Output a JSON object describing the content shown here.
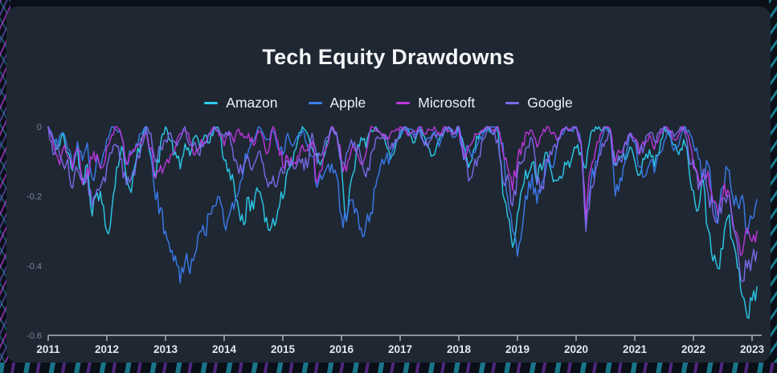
{
  "theme": {
    "page_bg": "#0a0f18",
    "card_bg": "#1f2733",
    "title_color": "#f4f6f8",
    "legend_text_color": "#eef1f4",
    "axis_line_color": "#ccd2da",
    "x_label_color": "#e4e8ec",
    "y_label_color": "#79839a",
    "edge_teal": "#25c7e3",
    "edge_magenta": "#c13be0"
  },
  "chart_data": {
    "type": "line",
    "title": "Tech Equity Drawdowns",
    "xlabel": "",
    "ylabel": "",
    "x_start_year": 2011,
    "x_step_months": 1,
    "xticks": [
      2011,
      2012,
      2013,
      2014,
      2015,
      2016,
      2017,
      2018,
      2019,
      2020,
      2021,
      2022,
      2023
    ],
    "yticks": [
      "0",
      "-0.2",
      "-0.4",
      "-0.6"
    ],
    "ylim": [
      -0.6,
      0
    ],
    "grid": false,
    "legend_position": "top",
    "render": {
      "upsample": 3,
      "jitter_base": 0.008,
      "jitter_scale": 0.18,
      "jitter_cap": 0.03,
      "seed": 42
    },
    "series": [
      {
        "name": "Amazon",
        "color": "#2ccfee",
        "values": [
          0,
          -0.04,
          -0.06,
          -0.02,
          -0.08,
          -0.12,
          -0.06,
          -0.16,
          -0.1,
          -0.25,
          -0.18,
          -0.22,
          -0.3,
          -0.24,
          -0.12,
          -0.06,
          -0.14,
          -0.18,
          -0.1,
          -0.04,
          0,
          -0.08,
          -0.15,
          -0.05,
          0,
          -0.04,
          -0.08,
          -0.12,
          -0.05,
          -0.08,
          -0.03,
          -0.06,
          -0.02,
          -0.05,
          0,
          -0.01,
          -0.1,
          -0.12,
          -0.16,
          -0.25,
          -0.28,
          -0.2,
          -0.24,
          -0.18,
          -0.22,
          -0.3,
          -0.26,
          -0.25,
          -0.2,
          -0.12,
          -0.1,
          -0.04,
          0,
          -0.02,
          -0.06,
          -0.08,
          -0.1,
          -0.04,
          0,
          -0.02,
          -0.12,
          -0.28,
          -0.16,
          -0.08,
          -0.03,
          -0.06,
          -0.01,
          0,
          -0.02,
          -0.05,
          -0.1,
          -0.06,
          -0.03,
          0,
          -0.02,
          -0.04,
          -0.01,
          -0.03,
          -0.06,
          -0.08,
          -0.04,
          -0.01,
          0,
          -0.02,
          0,
          -0.05,
          -0.12,
          -0.06,
          -0.03,
          -0.01,
          0,
          -0.02,
          0,
          -0.2,
          -0.26,
          -0.34,
          -0.24,
          -0.18,
          -0.14,
          -0.1,
          -0.16,
          -0.12,
          -0.08,
          -0.14,
          -0.16,
          -0.15,
          -0.12,
          -0.1,
          -0.06,
          -0.08,
          -0.12,
          -0.02,
          0,
          -0.01,
          0,
          -0.02,
          -0.12,
          -0.08,
          -0.1,
          -0.06,
          -0.09,
          -0.13,
          -0.1,
          -0.06,
          -0.11,
          -0.08,
          0,
          -0.02,
          -0.05,
          -0.08,
          -0.04,
          -0.1,
          -0.18,
          -0.25,
          -0.15,
          -0.3,
          -0.38,
          -0.4,
          -0.35,
          -0.26,
          -0.32,
          -0.4,
          -0.48,
          -0.55,
          -0.5,
          -0.46
        ]
      },
      {
        "name": "Apple",
        "color": "#3b7ef0",
        "values": [
          0,
          -0.03,
          -0.05,
          -0.02,
          -0.06,
          -0.12,
          -0.04,
          -0.1,
          -0.05,
          -0.15,
          -0.08,
          -0.1,
          -0.04,
          0,
          -0.01,
          -0.03,
          -0.1,
          -0.08,
          -0.05,
          -0.02,
          0,
          -0.08,
          -0.2,
          -0.24,
          -0.3,
          -0.36,
          -0.38,
          -0.44,
          -0.38,
          -0.42,
          -0.36,
          -0.3,
          -0.32,
          -0.26,
          -0.22,
          -0.2,
          -0.28,
          -0.25,
          -0.23,
          -0.18,
          -0.12,
          -0.07,
          -0.04,
          0,
          -0.02,
          -0.04,
          -0.01,
          -0.06,
          -0.08,
          -0.02,
          -0.05,
          -0.03,
          -0.01,
          -0.05,
          -0.08,
          -0.18,
          -0.16,
          -0.12,
          -0.1,
          -0.14,
          -0.25,
          -0.28,
          -0.2,
          -0.24,
          -0.3,
          -0.28,
          -0.24,
          -0.18,
          -0.12,
          -0.1,
          -0.08,
          -0.05,
          -0.02,
          0,
          -0.01,
          -0.02,
          0,
          -0.05,
          -0.03,
          -0.01,
          -0.06,
          -0.02,
          0,
          -0.03,
          -0.01,
          -0.1,
          -0.06,
          -0.08,
          -0.04,
          -0.02,
          -0.01,
          0,
          -0.01,
          -0.05,
          -0.2,
          -0.3,
          -0.38,
          -0.28,
          -0.2,
          -0.14,
          -0.22,
          -0.16,
          -0.1,
          -0.12,
          -0.06,
          -0.02,
          0,
          -0.01,
          0,
          -0.05,
          -0.27,
          -0.16,
          -0.1,
          -0.04,
          0,
          -0.01,
          -0.2,
          -0.14,
          -0.1,
          -0.02,
          -0.04,
          -0.12,
          -0.15,
          -0.1,
          -0.13,
          -0.08,
          -0.04,
          -0.01,
          -0.07,
          -0.05,
          0,
          -0.01,
          -0.05,
          -0.1,
          -0.14,
          -0.1,
          -0.22,
          -0.27,
          -0.17,
          -0.12,
          -0.2,
          -0.23,
          -0.2,
          -0.3,
          -0.27,
          -0.21
        ]
      },
      {
        "name": "Microsoft",
        "color": "#c136e0",
        "values": [
          0,
          -0.05,
          -0.1,
          -0.06,
          -0.08,
          -0.12,
          -0.06,
          -0.16,
          -0.12,
          -0.1,
          -0.08,
          -0.12,
          -0.06,
          -0.02,
          0,
          -0.03,
          -0.1,
          -0.08,
          -0.05,
          -0.04,
          -0.02,
          -0.06,
          -0.14,
          -0.12,
          -0.1,
          -0.08,
          -0.06,
          -0.02,
          -0.01,
          -0.04,
          -0.08,
          -0.06,
          -0.04,
          -0.02,
          0,
          -0.03,
          -0.05,
          -0.02,
          -0.04,
          -0.01,
          -0.03,
          -0.02,
          -0.05,
          -0.01,
          -0.03,
          -0.08,
          0,
          -0.04,
          -0.12,
          -0.09,
          -0.11,
          -0.08,
          -0.05,
          -0.07,
          -0.04,
          -0.17,
          -0.12,
          -0.06,
          0,
          -0.02,
          -0.1,
          -0.12,
          -0.06,
          -0.08,
          -0.1,
          -0.08,
          0,
          -0.01,
          -0.02,
          -0.04,
          -0.02,
          -0.01,
          0,
          -0.01,
          -0.02,
          -0.01,
          0,
          -0.02,
          -0.01,
          0,
          -0.02,
          0,
          -0.01,
          -0.02,
          0,
          -0.08,
          -0.06,
          -0.04,
          -0.02,
          -0.01,
          0,
          -0.01,
          0,
          -0.08,
          -0.12,
          -0.18,
          -0.1,
          -0.05,
          -0.02,
          -0.01,
          -0.06,
          -0.02,
          0,
          -0.02,
          -0.04,
          -0.01,
          0,
          -0.01,
          0,
          -0.04,
          -0.26,
          -0.12,
          -0.06,
          -0.02,
          0,
          -0.01,
          -0.1,
          -0.08,
          -0.05,
          -0.02,
          -0.03,
          -0.08,
          -0.05,
          -0.02,
          -0.06,
          -0.03,
          0,
          -0.01,
          -0.04,
          -0.02,
          0,
          -0.03,
          -0.12,
          -0.14,
          -0.15,
          -0.12,
          -0.22,
          -0.25,
          -0.2,
          -0.18,
          -0.26,
          -0.31,
          -0.37,
          -0.3,
          -0.33,
          -0.3
        ]
      },
      {
        "name": "Google",
        "color": "#7d6bef",
        "values": [
          0,
          -0.08,
          -0.06,
          -0.1,
          -0.09,
          -0.18,
          -0.12,
          -0.16,
          -0.14,
          -0.24,
          -0.18,
          -0.15,
          -0.12,
          -0.08,
          -0.06,
          -0.1,
          -0.16,
          -0.14,
          -0.1,
          -0.06,
          0,
          -0.02,
          -0.1,
          -0.06,
          -0.04,
          -0.02,
          -0.05,
          -0.03,
          0,
          -0.06,
          -0.04,
          -0.08,
          -0.05,
          -0.02,
          0,
          -0.01,
          -0.03,
          -0.01,
          -0.1,
          -0.14,
          -0.12,
          -0.09,
          -0.11,
          -0.08,
          -0.1,
          -0.18,
          -0.14,
          -0.15,
          -0.13,
          -0.1,
          -0.12,
          -0.11,
          -0.09,
          -0.12,
          -0.02,
          -0.1,
          -0.08,
          -0.03,
          0,
          -0.02,
          -0.1,
          -0.08,
          -0.04,
          -0.07,
          -0.09,
          -0.15,
          -0.08,
          -0.04,
          -0.03,
          -0.02,
          -0.06,
          -0.04,
          -0.01,
          0,
          -0.02,
          -0.03,
          -0.01,
          -0.05,
          -0.04,
          -0.02,
          -0.03,
          -0.01,
          0,
          -0.02,
          0,
          -0.09,
          -0.15,
          -0.12,
          -0.08,
          -0.04,
          0,
          -0.02,
          -0.04,
          -0.16,
          -0.14,
          -0.23,
          -0.14,
          -0.1,
          -0.06,
          -0.04,
          -0.16,
          -0.18,
          -0.1,
          -0.08,
          -0.06,
          -0.02,
          0,
          -0.01,
          0,
          -0.05,
          -0.3,
          -0.18,
          -0.12,
          -0.08,
          -0.04,
          -0.01,
          -0.12,
          -0.1,
          -0.05,
          -0.02,
          -0.04,
          -0.08,
          -0.05,
          -0.02,
          -0.04,
          -0.02,
          0,
          -0.01,
          -0.03,
          -0.01,
          0,
          -0.08,
          -0.1,
          -0.18,
          -0.12,
          -0.2,
          -0.24,
          -0.27,
          -0.21,
          -0.2,
          -0.28,
          -0.34,
          -0.44,
          -0.4,
          -0.38,
          -0.36
        ]
      }
    ]
  }
}
